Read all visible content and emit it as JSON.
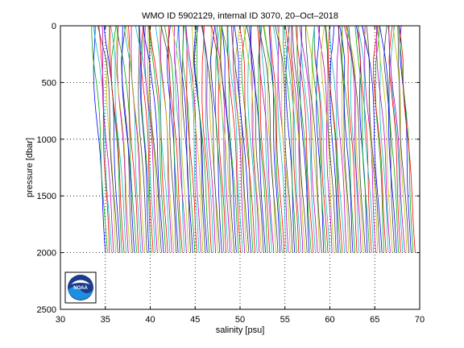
{
  "chart_data": {
    "type": "line",
    "title": "WMO ID 5902129, internal ID 3070, 20–Oct–2018",
    "xlabel": "salinity [psu]",
    "ylabel": "pressure [dbar]",
    "xlim": [
      30,
      70
    ],
    "ylim": [
      0,
      2500
    ],
    "y_reversed": true,
    "grid": "dotted",
    "xticks": [
      30,
      35,
      40,
      45,
      50,
      55,
      60,
      65,
      70
    ],
    "yticks": [
      0,
      500,
      1000,
      1500,
      2000,
      2500
    ],
    "profiles": {
      "description_of_series": "waterfall of salinity profiles, each offset in salinity",
      "count": 150,
      "first_offset_salinity": 35.0,
      "last_offset_salinity": 69.5,
      "max_pressure": 2000,
      "colors": [
        "#0000ff",
        "#00aa00",
        "#ff0000",
        "#00bfbf",
        "#bf00bf",
        "#bfbf00",
        "#404040"
      ]
    },
    "logo": "noaa-logo"
  }
}
